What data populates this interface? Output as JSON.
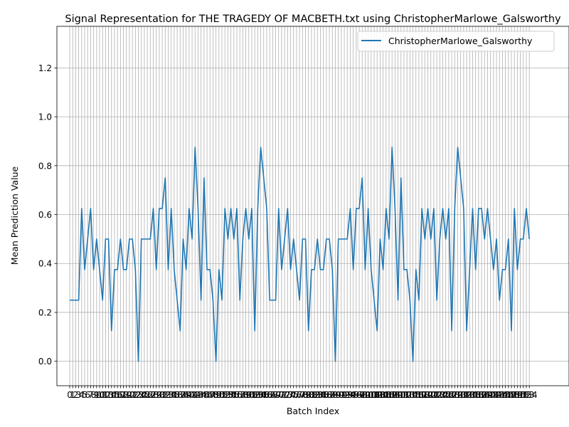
{
  "chart_data": {
    "type": "line",
    "title": "Signal Representation for THE TRAGEDY OF MACBETH.txt using ChristopherMarlowe_Galsworthy",
    "xlabel": "Batch Index",
    "ylabel": "Mean Prediction Value",
    "xlim": [
      -4.3,
      167.3
    ],
    "ylim": [
      -0.1,
      1.37
    ],
    "yticks": [
      0.0,
      0.2,
      0.4,
      0.6,
      0.8,
      1.0,
      1.2
    ],
    "ytick_labels": [
      "0.0",
      "0.2",
      "0.4",
      "0.6",
      "0.8",
      "1.0",
      "1.2"
    ],
    "grid": true,
    "legend_position": "top-right",
    "series": [
      {
        "name": "ChristopherMarlowe_Galsworthy",
        "color": "#1f77b4",
        "values": [
          0.25,
          0.25,
          0.25,
          0.25,
          0.625,
          0.375,
          0.5,
          0.625,
          0.375,
          0.5,
          0.375,
          0.25,
          0.5,
          0.5,
          0.125,
          0.375,
          0.375,
          0.5,
          0.375,
          0.375,
          0.5,
          0.5,
          0.375,
          0.0,
          0.5,
          0.5,
          0.5,
          0.5,
          0.625,
          0.375,
          0.625,
          0.625,
          0.75,
          0.375,
          0.625,
          0.375,
          0.25,
          0.125,
          0.5,
          0.375,
          0.625,
          0.5,
          0.875,
          0.625,
          0.25,
          0.75,
          0.375,
          0.375,
          0.25,
          0.0,
          0.375,
          0.25,
          0.625,
          0.5,
          0.625,
          0.5,
          0.625,
          0.25,
          0.5,
          0.625,
          0.5,
          0.625,
          0.125,
          0.625,
          0.875,
          0.75,
          0.625,
          0.25,
          0.25,
          0.25,
          0.625,
          0.375,
          0.5,
          0.625,
          0.375,
          0.5,
          0.375,
          0.25,
          0.5,
          0.5,
          0.125,
          0.375,
          0.375,
          0.5,
          0.375,
          0.375,
          0.5,
          0.5,
          0.375,
          0.0,
          0.5,
          0.5,
          0.5,
          0.5,
          0.625,
          0.375,
          0.625,
          0.625,
          0.75,
          0.375,
          0.625,
          0.375,
          0.25,
          0.125,
          0.5,
          0.375,
          0.625,
          0.5,
          0.875,
          0.625,
          0.25,
          0.75,
          0.375,
          0.375,
          0.25,
          0.0,
          0.375,
          0.25,
          0.625,
          0.5,
          0.625,
          0.5,
          0.625,
          0.25,
          0.5,
          0.625,
          0.5,
          0.625,
          0.125,
          0.625,
          0.875,
          0.75,
          0.625,
          0.125,
          0.375,
          0.625,
          0.375,
          0.625,
          0.625,
          0.5,
          0.625,
          0.5,
          0.375,
          0.5,
          0.25,
          0.375,
          0.375,
          0.5,
          0.125,
          0.625,
          0.375,
          0.5,
          0.5,
          0.625,
          0.5
        ]
      }
    ]
  }
}
